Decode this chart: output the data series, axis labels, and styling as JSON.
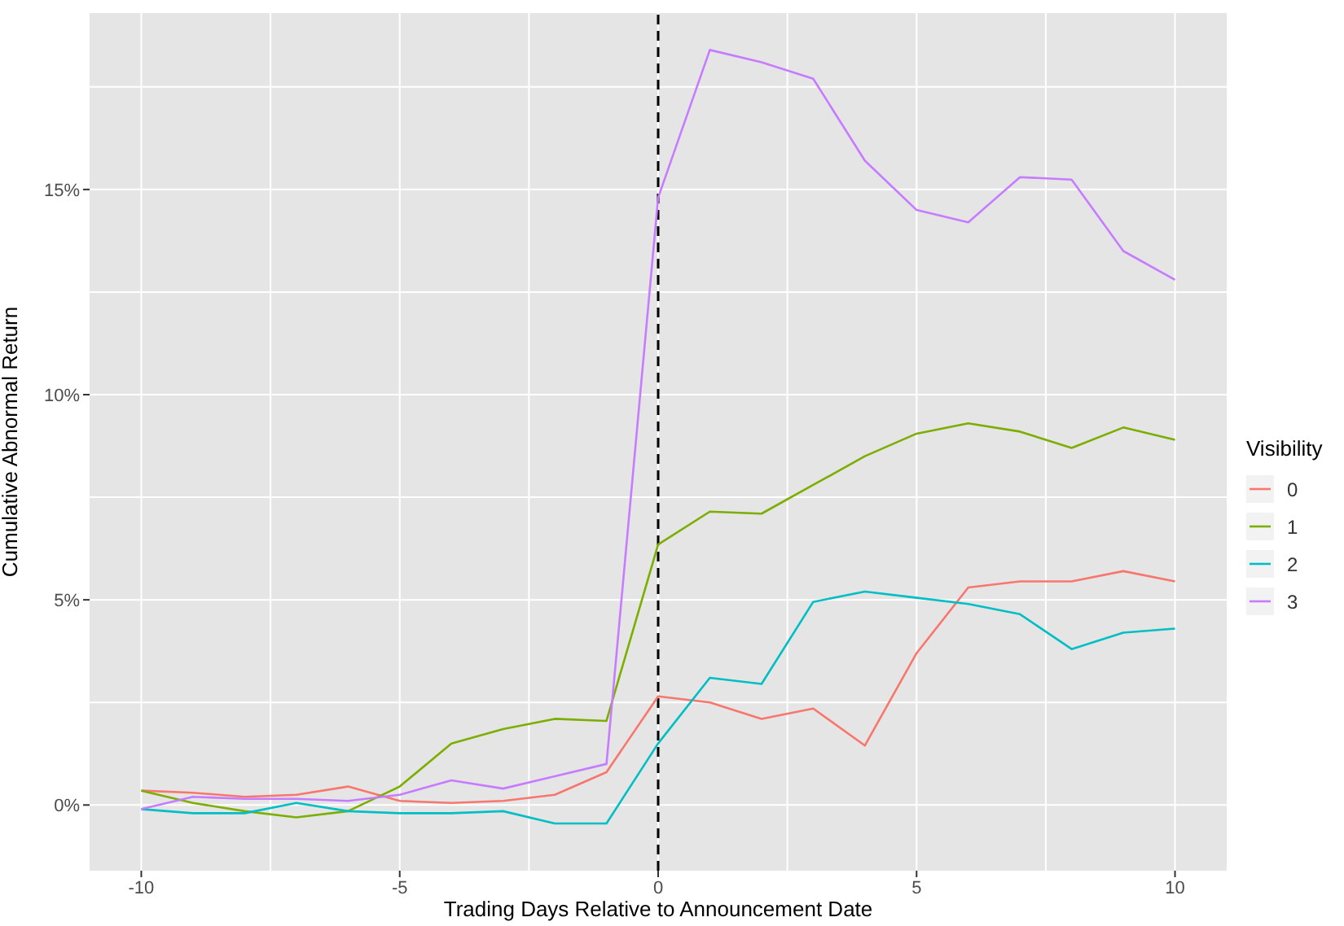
{
  "chart_data": {
    "type": "line",
    "xlabel": "Trading Days Relative to Announcement Date",
    "ylabel": "Cumulative Abnormal Return",
    "legend_title": "Visibility",
    "legend": "right",
    "grid": true,
    "marker": "none",
    "line_style": "solid",
    "x": [
      -10,
      -9,
      -8,
      -7,
      -6,
      -5,
      -4,
      -3,
      -2,
      -1,
      0,
      1,
      2,
      3,
      4,
      5,
      6,
      7,
      8,
      9,
      10
    ],
    "xlim": [
      -11,
      11
    ],
    "xticks": [
      -10,
      -5,
      0,
      5,
      10
    ],
    "ylim": [
      -1.6,
      19.3
    ],
    "yticks": [
      {
        "value": 0,
        "label": "0%"
      },
      {
        "value": 5,
        "label": "5%"
      },
      {
        "value": 10,
        "label": "10%"
      },
      {
        "value": 15,
        "label": "15%"
      }
    ],
    "ref_lines": [
      {
        "axis": "x",
        "value": 0,
        "label": null,
        "color": "#000000",
        "line_style": "dashed"
      }
    ],
    "series": [
      {
        "name": "0",
        "color": "#F8766D",
        "values": [
          0.35,
          0.3,
          0.2,
          0.25,
          0.45,
          0.1,
          0.05,
          0.1,
          0.25,
          0.8,
          2.65,
          2.5,
          2.1,
          2.35,
          1.45,
          3.7,
          5.3,
          5.45,
          5.45,
          5.7,
          5.45
        ]
      },
      {
        "name": "1",
        "color": "#7CAE00",
        "values": [
          0.35,
          0.05,
          -0.15,
          -0.3,
          -0.15,
          0.45,
          1.5,
          1.85,
          2.1,
          2.05,
          6.35,
          7.15,
          7.1,
          7.8,
          8.5,
          9.05,
          9.3,
          9.1,
          8.7,
          9.2,
          8.9
        ]
      },
      {
        "name": "2",
        "color": "#00BFC4",
        "values": [
          -0.1,
          -0.2,
          -0.2,
          0.05,
          -0.15,
          -0.2,
          -0.2,
          -0.15,
          -0.45,
          -0.45,
          1.5,
          3.1,
          2.95,
          4.95,
          5.2,
          5.05,
          4.9,
          4.65,
          3.8,
          4.2,
          4.3
        ]
      },
      {
        "name": "3",
        "color": "#C77CFF",
        "values": [
          -0.1,
          0.2,
          0.15,
          0.15,
          0.1,
          0.25,
          0.6,
          0.4,
          0.7,
          1.0,
          14.8,
          18.4,
          18.1,
          17.7,
          15.7,
          14.5,
          14.2,
          15.3,
          15.24,
          13.5,
          12.8
        ]
      }
    ]
  }
}
